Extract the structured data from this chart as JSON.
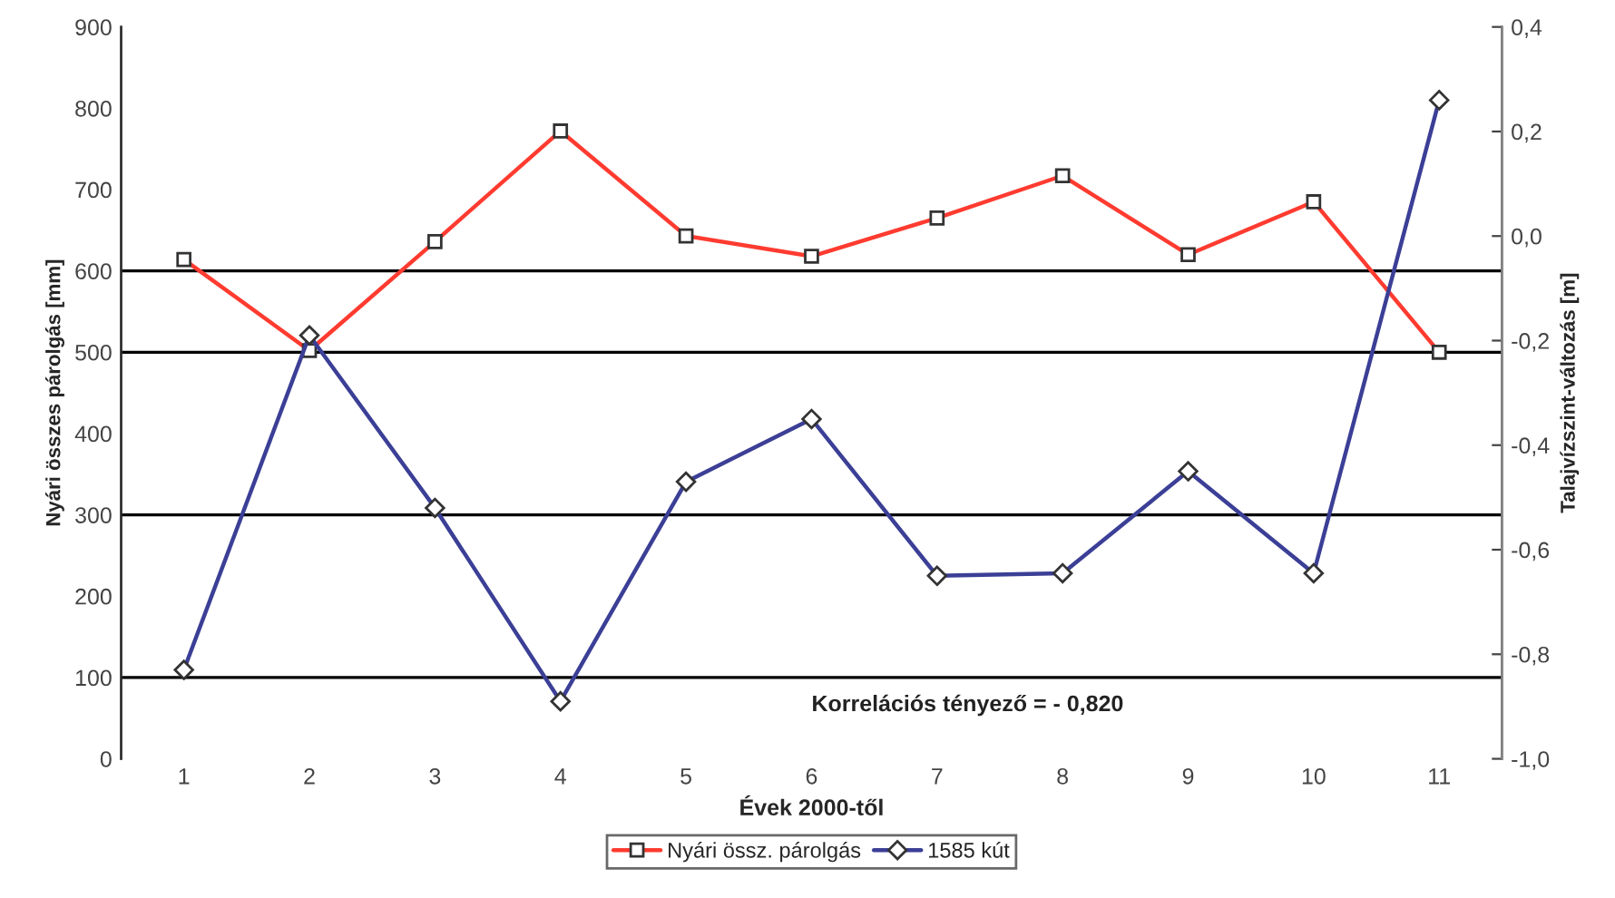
{
  "chart_data": {
    "type": "line",
    "xlabel": "Évek 2000-től",
    "ylabel": "Nyári összes párolgás [mm]",
    "y2label": "Talajvízszint-változás [m]",
    "categories": [
      "1",
      "2",
      "3",
      "4",
      "5",
      "6",
      "7",
      "8",
      "9",
      "10",
      "11"
    ],
    "series": [
      {
        "name": "Nyári össz. párolgás",
        "color": "#ff3b30",
        "marker": "square",
        "values": [
          614,
          502,
          636,
          772,
          643,
          618,
          665,
          717,
          620,
          685,
          500
        ]
      },
      {
        "name": "1585 kút",
        "color": "#3b3f96",
        "marker": "diamond",
        "axis": "y2",
        "values": [
          -0.83,
          -0.19,
          -0.52,
          -0.89,
          -0.47,
          -0.35,
          -0.65,
          -0.645,
          -0.45,
          -0.645,
          0.26
        ]
      }
    ],
    "ylim": [
      0,
      900
    ],
    "yticks": [
      0,
      100,
      200,
      300,
      400,
      500,
      600,
      700,
      800,
      900
    ],
    "y2lim": [
      -1.0,
      0.4
    ],
    "y2ticks": [
      {
        "value": -1.0,
        "label": "-1,0"
      },
      {
        "value": -0.8,
        "label": "-0,8"
      },
      {
        "value": -0.6,
        "label": "-0,6"
      },
      {
        "value": -0.4,
        "label": "-0,4"
      },
      {
        "value": -0.2,
        "label": "-0,2"
      },
      {
        "value": 0.0,
        "label": "0,0"
      },
      {
        "value": 0.2,
        "label": "0,2"
      },
      {
        "value": 0.4,
        "label": "0,4"
      }
    ],
    "ref_lines": [
      {
        "axis": "y",
        "value": 100,
        "color": "#000000"
      },
      {
        "axis": "y",
        "value": 300,
        "color": "#000000"
      },
      {
        "axis": "y",
        "value": 500,
        "color": "#000000"
      },
      {
        "axis": "y",
        "value": 600,
        "color": "#000000"
      }
    ],
    "annotations": [
      "Korrelációs tényező = - 0,820"
    ],
    "legend": "bottom",
    "grid": false,
    "line_style": "solid"
  }
}
